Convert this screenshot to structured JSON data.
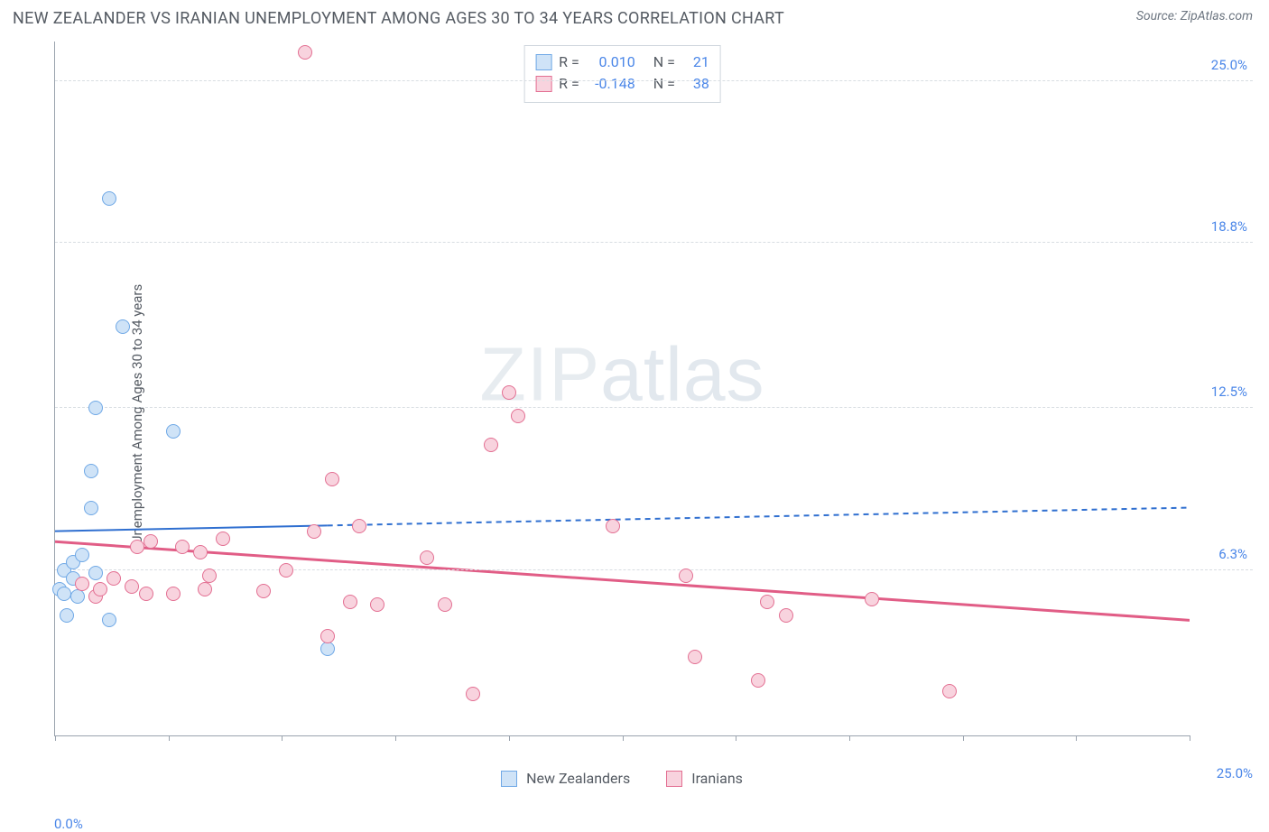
{
  "title": "NEW ZEALANDER VS IRANIAN UNEMPLOYMENT AMONG AGES 30 TO 34 YEARS CORRELATION CHART",
  "source": "Source: ZipAtlas.com",
  "y_axis_label": "Unemployment Among Ages 30 to 34 years",
  "watermark": {
    "part1": "ZIP",
    "part2": "atlas"
  },
  "chart": {
    "type": "scatter",
    "xlim": [
      0,
      25
    ],
    "ylim": [
      0,
      26.5
    ],
    "x_min_label": "0.0%",
    "x_max_label": "25.0%",
    "y_ticks": [
      {
        "v": 6.3,
        "label": "6.3%"
      },
      {
        "v": 12.5,
        "label": "12.5%"
      },
      {
        "v": 18.8,
        "label": "18.8%"
      },
      {
        "v": 25.0,
        "label": "25.0%"
      }
    ],
    "x_tick_positions": [
      0,
      2.5,
      5.0,
      7.5,
      10.0,
      12.5,
      15.0,
      17.5,
      20.0,
      22.5,
      25.0
    ],
    "series": [
      {
        "name": "New Zealanders",
        "fill": "#cfe3f7",
        "stroke": "#6fa8e6",
        "marker_radius": 8,
        "R": "0.010",
        "N": "21",
        "trend": {
          "y_at_x0": 7.8,
          "y_at_x25": 8.7,
          "solid_until_x": 6.0,
          "color": "#2f6fd0",
          "width": 2,
          "dash": "6 5"
        },
        "points": [
          [
            0.1,
            5.6
          ],
          [
            0.2,
            6.3
          ],
          [
            0.2,
            5.4
          ],
          [
            0.4,
            6.6
          ],
          [
            0.4,
            6.0
          ],
          [
            0.5,
            5.3
          ],
          [
            0.6,
            6.9
          ],
          [
            0.25,
            4.6
          ],
          [
            0.9,
            6.2
          ],
          [
            1.2,
            4.4
          ],
          [
            0.8,
            8.7
          ],
          [
            0.8,
            10.1
          ],
          [
            0.9,
            12.5
          ],
          [
            1.5,
            15.6
          ],
          [
            2.6,
            11.6
          ],
          [
            1.2,
            20.5
          ],
          [
            6.0,
            3.3
          ]
        ]
      },
      {
        "name": "Iranians",
        "fill": "#f8d3de",
        "stroke": "#e36f92",
        "marker_radius": 8,
        "R": "-0.148",
        "N": "38",
        "trend": {
          "y_at_x0": 7.4,
          "y_at_x25": 4.4,
          "solid_until_x": 25.0,
          "color": "#e15d86",
          "width": 3,
          "dash": null
        },
        "points": [
          [
            0.6,
            5.8
          ],
          [
            0.9,
            5.3
          ],
          [
            1.0,
            5.6
          ],
          [
            1.3,
            6.0
          ],
          [
            1.7,
            5.7
          ],
          [
            1.8,
            7.2
          ],
          [
            2.0,
            5.4
          ],
          [
            2.1,
            7.4
          ],
          [
            2.6,
            5.4
          ],
          [
            2.8,
            7.2
          ],
          [
            3.2,
            7.0
          ],
          [
            3.3,
            5.6
          ],
          [
            3.4,
            6.1
          ],
          [
            3.7,
            7.5
          ],
          [
            4.6,
            5.5
          ],
          [
            5.1,
            6.3
          ],
          [
            5.7,
            7.8
          ],
          [
            5.5,
            26.1
          ],
          [
            6.0,
            3.8
          ],
          [
            6.1,
            9.8
          ],
          [
            6.5,
            5.1
          ],
          [
            6.7,
            8.0
          ],
          [
            7.1,
            5.0
          ],
          [
            8.2,
            6.8
          ],
          [
            8.6,
            5.0
          ],
          [
            9.6,
            11.1
          ],
          [
            10.0,
            13.1
          ],
          [
            10.2,
            12.2
          ],
          [
            9.2,
            1.6
          ],
          [
            12.3,
            8.0
          ],
          [
            13.9,
            6.1
          ],
          [
            14.1,
            3.0
          ],
          [
            15.7,
            5.1
          ],
          [
            16.1,
            4.6
          ],
          [
            15.5,
            2.1
          ],
          [
            19.7,
            1.7
          ],
          [
            18.0,
            5.2
          ]
        ]
      }
    ]
  },
  "legend_bottom": [
    {
      "label": "New Zealanders",
      "fill": "#cfe3f7",
      "stroke": "#6fa8e6"
    },
    {
      "label": "Iranians",
      "fill": "#f8d3de",
      "stroke": "#e36f92"
    }
  ]
}
